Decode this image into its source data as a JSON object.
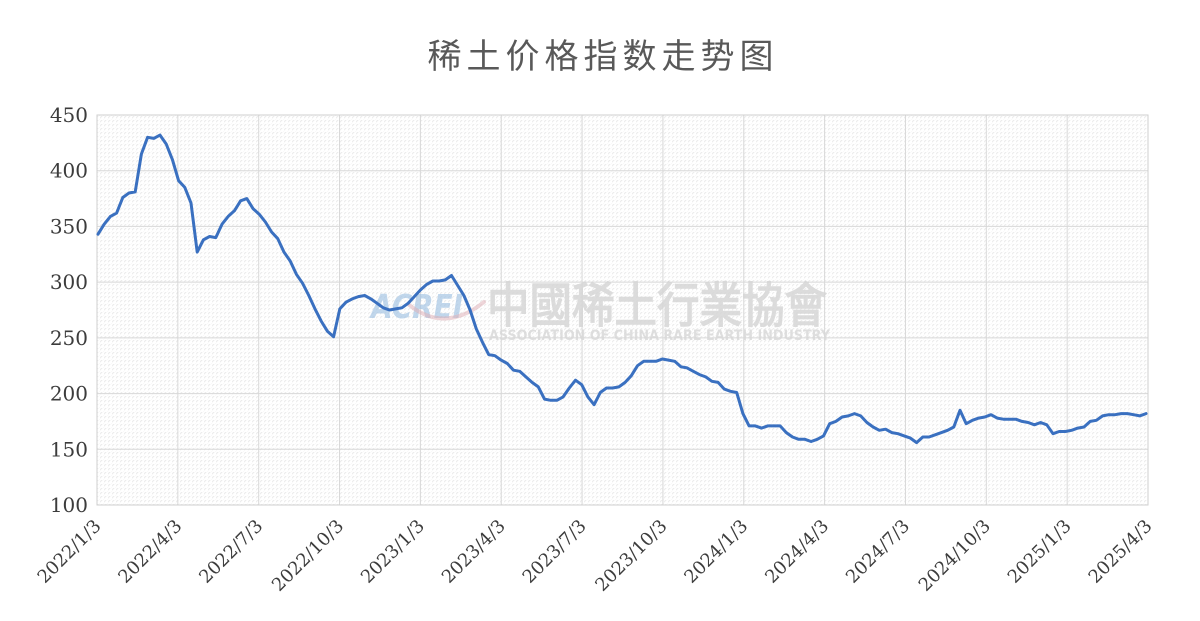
{
  "title": "稀土价格指数走势图",
  "watermark": {
    "acronym": "ACREI",
    "cn_name": "中國稀土行業協會",
    "en_name": "ASSOCIATION OF CHINA RARE EARTH INDUSTRY"
  },
  "colors": {
    "line": "#3a70c0",
    "title_text": "#595959",
    "axis_text": "#3c3c3c",
    "gridline": "#d8d8d8",
    "plot_border": "#cfcfcf",
    "hatch": "#ececec",
    "watermark_blue": "#9fc0e2",
    "watermark_gray": "#d6d6d6",
    "watermark_swoosh": "#dba6ad"
  },
  "chart_data": {
    "type": "line",
    "title": "稀土价格指数走势图",
    "series_name": "稀土价格指数",
    "x_start": "2022/1/3",
    "x_interval": "weekly",
    "x_tick_labels": [
      "2022/1/3",
      "2022/4/3",
      "2022/7/3",
      "2022/10/3",
      "2023/1/3",
      "2023/4/3",
      "2023/7/3",
      "2023/10/3",
      "2024/1/3",
      "2024/4/3",
      "2024/7/3",
      "2024/10/3",
      "2025/1/3",
      "2025/4/3"
    ],
    "y_ticks": [
      450,
      400,
      350,
      300,
      250,
      200,
      150,
      100
    ],
    "ylim": [
      100,
      450
    ],
    "grid": true,
    "legend": "none",
    "values": [
      343,
      352,
      359,
      362,
      376,
      380,
      381,
      415,
      430,
      429,
      432,
      424,
      410,
      391,
      385,
      371,
      327,
      338,
      341,
      340,
      352,
      359,
      364,
      373,
      375,
      366,
      361,
      354,
      345,
      339,
      327,
      319,
      307,
      299,
      288,
      276,
      265,
      256,
      251,
      276,
      282,
      285,
      287,
      288,
      285,
      281,
      277,
      275,
      276,
      277,
      281,
      287,
      293,
      298,
      301,
      301,
      302,
      306,
      297,
      288,
      275,
      258,
      246,
      235,
      234,
      230,
      227,
      221,
      220,
      215,
      210,
      206,
      195,
      194,
      194,
      197,
      205,
      212,
      208,
      197,
      190,
      201,
      205,
      205,
      206,
      210,
      216,
      225,
      229,
      229,
      229,
      231,
      230,
      229,
      224,
      223,
      220,
      217,
      215,
      211,
      210,
      204,
      202,
      201,
      182,
      171,
      171,
      169,
      171,
      171,
      171,
      165,
      161,
      159,
      159,
      157,
      159,
      162,
      173,
      175,
      179,
      180,
      182,
      180,
      174,
      170,
      167,
      168,
      165,
      164,
      162,
      160,
      156,
      161,
      161,
      163,
      165,
      167,
      170,
      185,
      173,
      176,
      178,
      179,
      181,
      178,
      177,
      177,
      177,
      175,
      174,
      172,
      174,
      172,
      164,
      166,
      166,
      167,
      169,
      170,
      175,
      176,
      180,
      181,
      181,
      182,
      182,
      181,
      180,
      182
    ]
  }
}
